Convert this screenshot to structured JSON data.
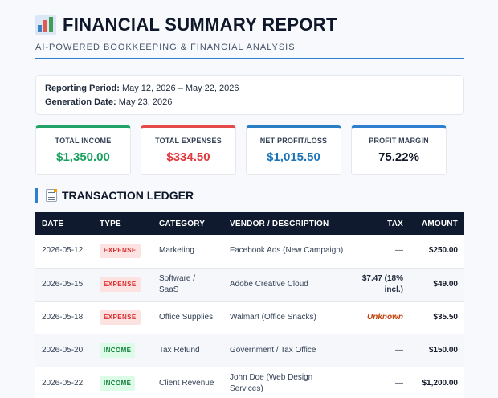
{
  "header": {
    "title": "FINANCIAL SUMMARY REPORT",
    "subtitle": "AI-POWERED BOOKKEEPING & FINANCIAL ANALYSIS",
    "icon": "bar-chart-icon"
  },
  "info": {
    "period_label": "Reporting Period:",
    "period_value": "May 12, 2026 – May 22, 2026",
    "generation_label": "Generation Date:",
    "generation_value": "May 23, 2026"
  },
  "kpis": [
    {
      "label": "TOTAL INCOME",
      "value": "$1,350.00",
      "color": "#18a05e"
    },
    {
      "label": "TOTAL EXPENSES",
      "value": "$334.50",
      "color": "#e0393e"
    },
    {
      "label": "NET PROFIT/LOSS",
      "value": "$1,015.50",
      "color": "#1d75b9"
    },
    {
      "label": "PROFIT MARGIN",
      "value": "75.22%",
      "color": "#111827"
    }
  ],
  "ledger": {
    "title": "TRANSACTION LEDGER",
    "icon": "ledger-icon",
    "columns": [
      "DATE",
      "TYPE",
      "CATEGORY",
      "VENDOR / DESCRIPTION",
      "TAX",
      "AMOUNT"
    ],
    "rows": [
      {
        "date": "2026-05-12",
        "type": "EXPENSE",
        "category": "Marketing",
        "vendor": "Facebook Ads (New Campaign)",
        "tax": "—",
        "amount": "$250.00"
      },
      {
        "date": "2026-05-15",
        "type": "EXPENSE",
        "category": "Software / SaaS",
        "vendor": "Adobe Creative Cloud",
        "tax": "$7.47 (18% incl.)",
        "amount": "$49.00"
      },
      {
        "date": "2026-05-18",
        "type": "EXPENSE",
        "category": "Office Supplies",
        "vendor": "Walmart (Office Snacks)",
        "tax": "Unknown",
        "amount": "$35.50"
      },
      {
        "date": "2026-05-20",
        "type": "INCOME",
        "category": "Tax Refund",
        "vendor": "Government / Tax Office",
        "tax": "—",
        "amount": "$150.00"
      },
      {
        "date": "2026-05-22",
        "type": "INCOME",
        "category": "Client Revenue",
        "vendor": "John Doe (Web Design Services)",
        "tax": "—",
        "amount": "$1,200.00"
      }
    ]
  },
  "colors": {
    "accent": "#2f7fd0",
    "table_header": "#0f1a2e",
    "income": "#18a05e",
    "expense": "#e0393e"
  }
}
